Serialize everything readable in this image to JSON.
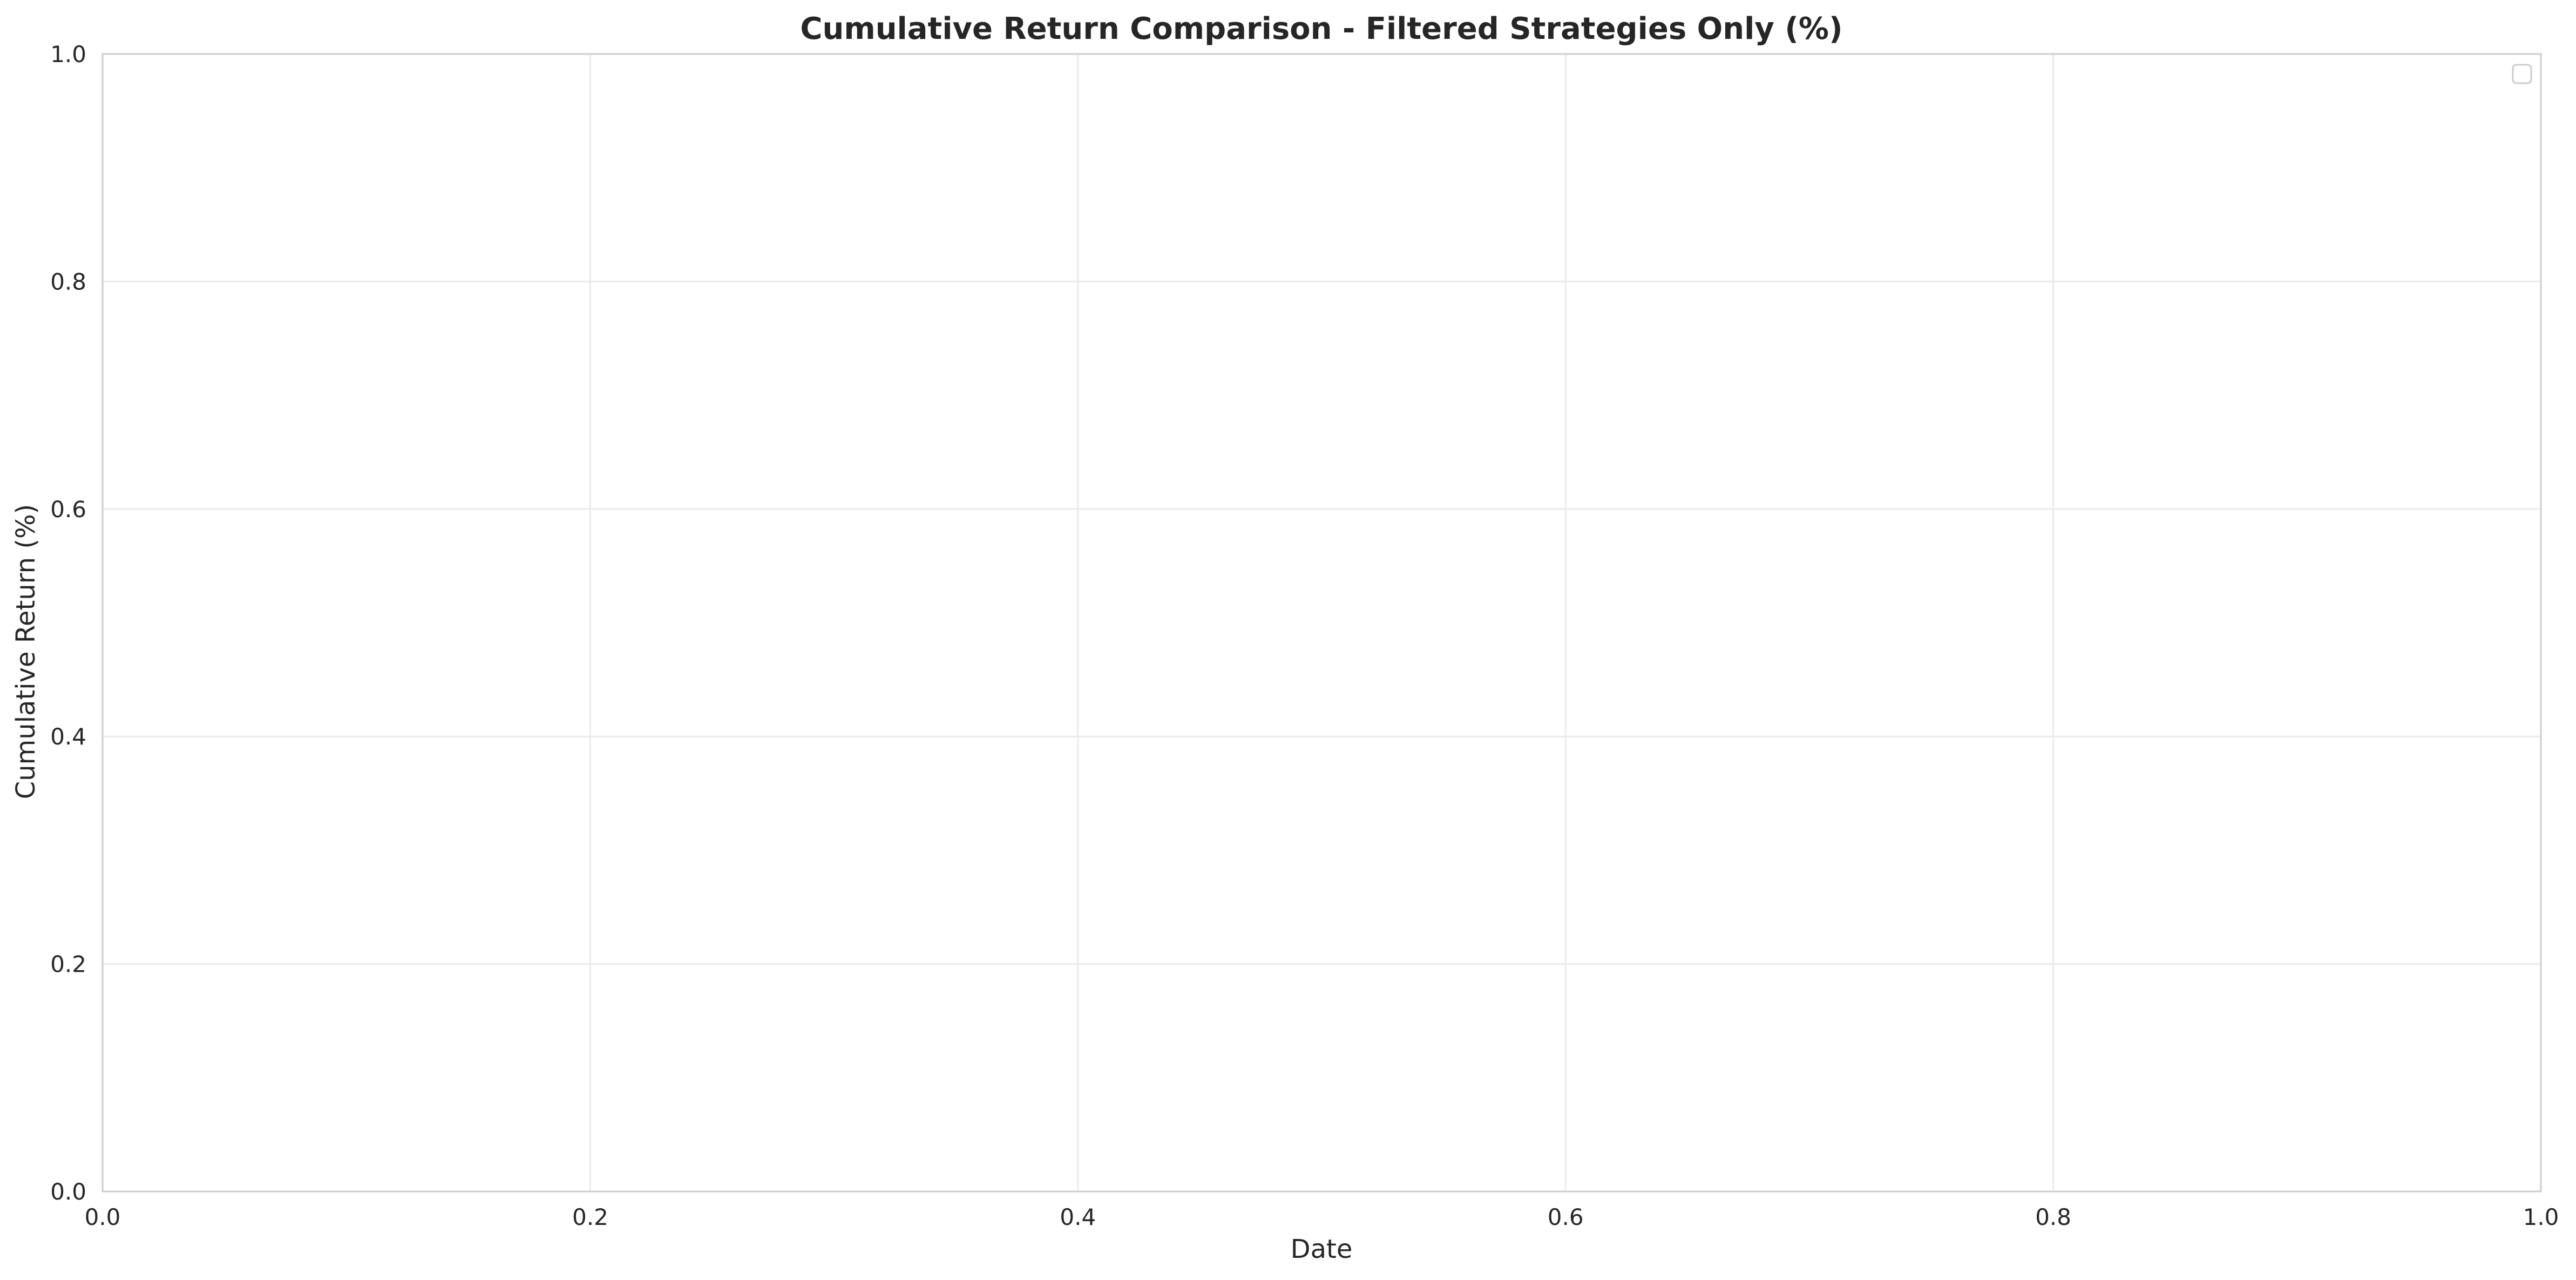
{
  "chart_data": {
    "type": "line",
    "title": "Cumulative Return Comparison - Filtered Strategies Only (%)",
    "xlabel": "Date",
    "ylabel": "Cumulative Return (%)",
    "xlim": [
      0.0,
      1.0
    ],
    "ylim": [
      0.0,
      1.0
    ],
    "x_ticks": [
      "0.0",
      "0.2",
      "0.4",
      "0.6",
      "0.8",
      "1.0"
    ],
    "y_ticks": [
      "0.0",
      "0.2",
      "0.4",
      "0.6",
      "0.8",
      "1.0"
    ],
    "grid": true,
    "legend": "top-right",
    "series": []
  },
  "colors": {
    "grid": "#ebebeb",
    "spine": "#cccccc",
    "text": "#262626",
    "background": "#ffffff"
  }
}
